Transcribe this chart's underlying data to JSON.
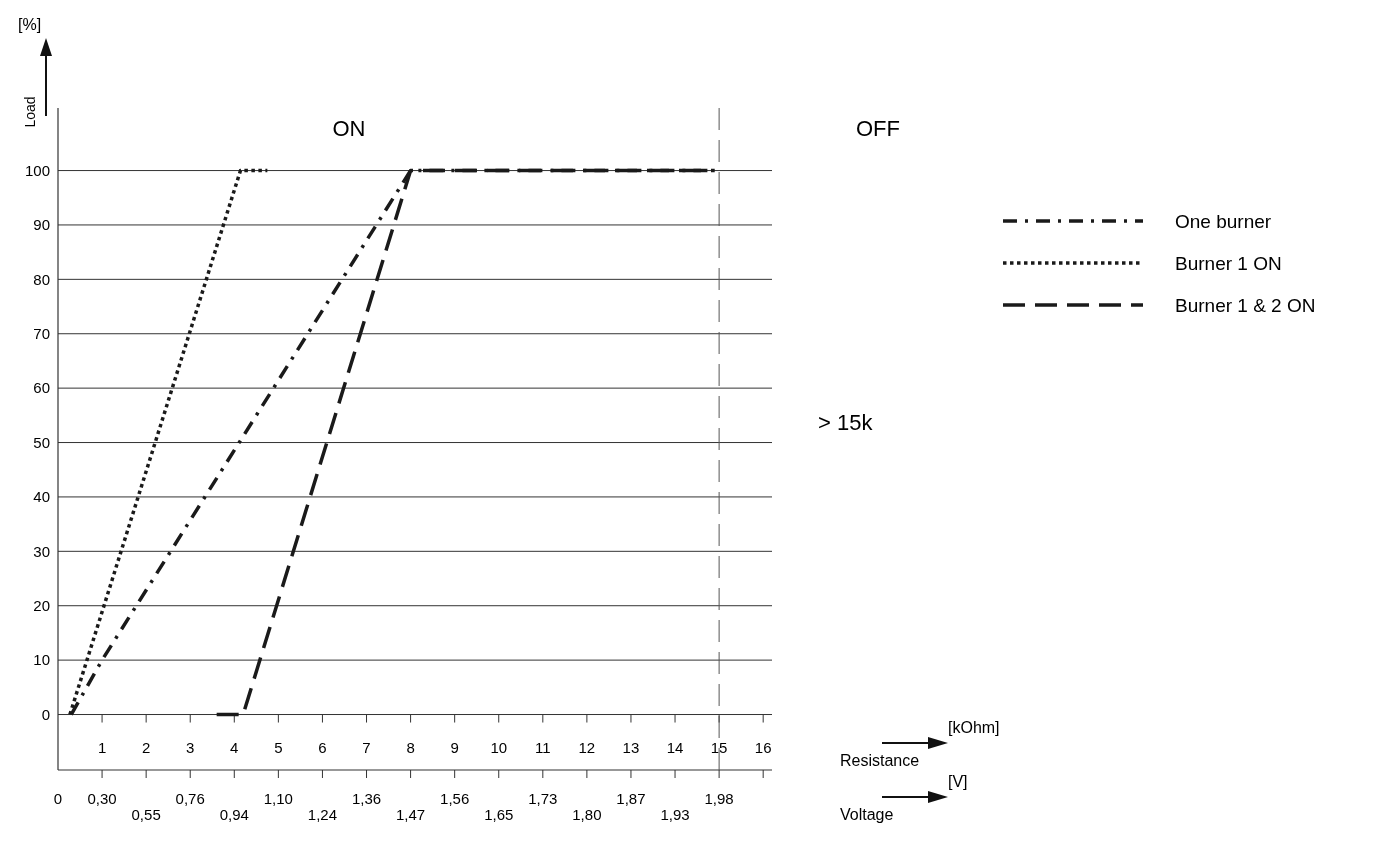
{
  "chart_data": {
    "type": "line",
    "ylabel": "Load",
    "xlabel": "Resistance",
    "xlim": [
      0,
      16.2
    ],
    "ylim": [
      -10.2,
      111.5
    ],
    "xticks": [
      1,
      2,
      3,
      4,
      5,
      6,
      7,
      8,
      9,
      10,
      11,
      12,
      13,
      14,
      15,
      16
    ],
    "yticks": [
      0,
      10,
      20,
      30,
      40,
      50,
      60,
      70,
      80,
      90,
      100
    ],
    "grid": "y",
    "legend": "right",
    "series": [
      {
        "name": "One burner",
        "color": "#1a1a1a",
        "line_style": "dashdot",
        "x": [
          0.3,
          1,
          8,
          14.9
        ],
        "values": [
          0,
          10,
          100,
          100
        ]
      },
      {
        "name": "Burner 1 ON",
        "color": "#1a1a1a",
        "line_style": "dotted",
        "x": [
          0.27,
          4.14,
          4.75
        ],
        "values": [
          0,
          100,
          100
        ]
      },
      {
        "name": "Burner 1 & 2 ON",
        "color": "#1a1a1a",
        "line_style": "dashed",
        "x": [
          3.6,
          4.2,
          8,
          14.9
        ],
        "values": [
          0,
          0,
          100,
          100
        ]
      }
    ],
    "ref_lines": [
      {
        "axis": "x",
        "value": 15,
        "color": "#555555",
        "line_style": "dashed"
      }
    ],
    "annotations": [
      "ON",
      "OFF",
      "> 15k",
      "[kOhm]",
      "[V]",
      "[%]",
      "Voltage",
      "0",
      "0,30",
      "0,55",
      "0,76",
      "0,94",
      "1,10",
      "1,24",
      "1,36",
      "1,47",
      "1,56",
      "1,65",
      "1,73",
      "1,80",
      "1,87",
      "1,93",
      "1,98"
    ]
  }
}
